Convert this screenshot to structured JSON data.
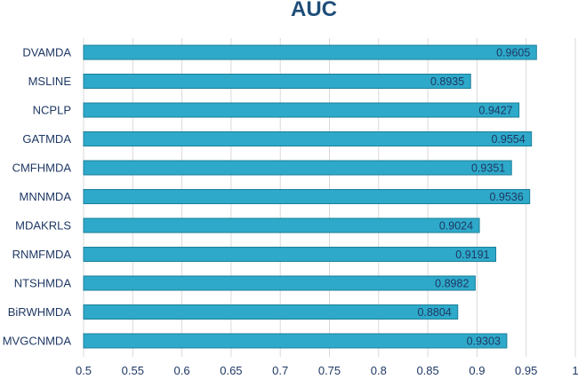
{
  "chart_data": {
    "type": "bar",
    "orientation": "horizontal",
    "title": "AUC",
    "categories": [
      "DVAMDA",
      "MSLINE",
      "NCPLP",
      "GATMDA",
      "CMFHMDA",
      "MNNMDA",
      "MDAKRLS",
      "RNMFMDA",
      "NTSHMDA",
      "BiRWHMDA",
      "MVGCNMDA"
    ],
    "values": [
      0.9605,
      0.8935,
      0.9427,
      0.9554,
      0.9351,
      0.9536,
      0.9024,
      0.9191,
      0.8982,
      0.8804,
      0.9303
    ],
    "data_labels": [
      "0.9605",
      "0.8935",
      "0.9427",
      "0.9554",
      "0.9351",
      "0.9536",
      "0.9024",
      "0.9191",
      "0.8982",
      "0.8804",
      "0.9303"
    ],
    "xlim": [
      0.5,
      1
    ],
    "xticks": [
      "0.5",
      "0.55",
      "0.6",
      "0.65",
      "0.7",
      "0.75",
      "0.8",
      "0.85",
      "0.9",
      "0.95",
      "1"
    ],
    "grid": "vertical",
    "bar_color": "#2ea9c9",
    "bar_edge_color": "#1b7f99",
    "xlabel": "",
    "ylabel": ""
  }
}
